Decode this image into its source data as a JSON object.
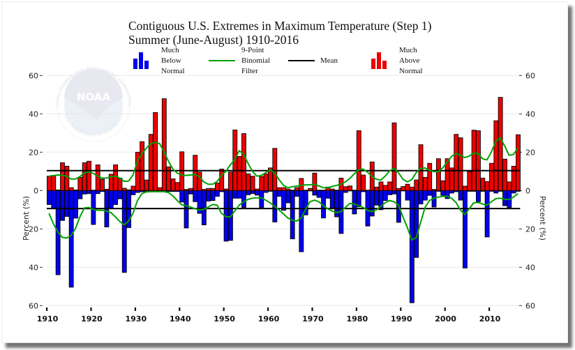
{
  "chart_data": {
    "type": "bar",
    "title": "Contiguous U.S. Extremes in Maximum Temperature (Step 1)",
    "subtitle": "Summer (June-August) 1910-2016",
    "xlabel": "",
    "ylabel_left": "Percent (%)",
    "ylabel_right": "Percent (%)",
    "ylim": [
      -60,
      60
    ],
    "yticks": [
      "60",
      "40",
      "20",
      "0",
      "20",
      "40",
      "60"
    ],
    "ytick_values": [
      60,
      40,
      20,
      0,
      -20,
      -40,
      -60
    ],
    "xticks": [
      "1910",
      "1920",
      "1930",
      "1940",
      "1950",
      "1960",
      "1970",
      "1980",
      "1990",
      "2000",
      "2010"
    ],
    "xtick_values": [
      1910,
      1920,
      1930,
      1940,
      1950,
      1960,
      1970,
      1980,
      1990,
      2000,
      2010
    ],
    "grid": true,
    "legend_position": "top",
    "legend": [
      {
        "key": "below",
        "label_lines": [
          "Much",
          "Below",
          "Normal"
        ],
        "type": "bars",
        "color": "#0000ee"
      },
      {
        "key": "filter",
        "label_lines": [
          "9-Point",
          "Binomial",
          "Filter"
        ],
        "type": "line",
        "color": "#00a000"
      },
      {
        "key": "mean",
        "label_lines": [
          "Mean"
        ],
        "type": "line",
        "color": "#000000"
      },
      {
        "key": "above",
        "label_lines": [
          "Much",
          "Above",
          "Normal"
        ],
        "type": "bars",
        "color": "#ee0000"
      }
    ],
    "x_start": 1910,
    "x_end": 2016,
    "series": [
      {
        "name": "Much Above Normal",
        "color": "#ee0000",
        "direction": "up",
        "values": [
          7.5,
          7.9,
          0.3,
          14.5,
          12.7,
          1.5,
          0.3,
          6.9,
          14.5,
          15.3,
          0.2,
          13.4,
          5.9,
          0.7,
          8.5,
          13.4,
          6.5,
          1.2,
          0.4,
          2.3,
          20.0,
          25.5,
          5.5,
          29.3,
          40.7,
          1.5,
          47.9,
          12.4,
          6.1,
          4.2,
          20.2,
          0.6,
          1.1,
          18.4,
          9.6,
          0.6,
          1.1,
          1.1,
          3.9,
          11.2,
          0.8,
          9.6,
          31.6,
          17.8,
          29.7,
          8.7,
          7.5,
          0.8,
          7.3,
          8.7,
          11.8,
          22.0,
          1.5,
          1.5,
          0.8,
          0.2,
          1.5,
          6.3,
          0.2,
          1.1,
          9.1,
          0.2,
          0.2,
          1.8,
          0.8,
          0.2,
          6.5,
          2.0,
          2.4,
          0.2,
          31.2,
          8.1,
          0.2,
          14.9,
          1.8,
          4.5,
          2.7,
          4.5,
          35.3,
          1.1,
          2.1,
          3.3,
          1.8,
          5.5,
          23.9,
          6.9,
          14.2,
          0.6,
          16.6,
          5.1,
          16.6,
          11.8,
          29.3,
          27.5,
          2.3,
          9.9,
          31.5,
          31.2,
          6.5,
          4.7,
          14.2,
          36.4,
          48.6,
          16.4,
          4.5,
          12.7,
          29.1
        ]
      },
      {
        "name": "Much Below Normal",
        "color": "#0000ee",
        "direction": "down",
        "values": [
          7.3,
          9.1,
          43.9,
          15.6,
          13.5,
          50.4,
          14.4,
          4.3,
          1.8,
          1.6,
          17.7,
          1.6,
          0.5,
          19.0,
          9.1,
          7.3,
          4.3,
          42.7,
          19.3,
          2.2,
          1.0,
          0.6,
          0.5,
          0.5,
          0.5,
          0.5,
          0.5,
          0.5,
          0.5,
          0.5,
          6.0,
          19.5,
          1.8,
          5.8,
          11.9,
          17.9,
          5.5,
          5.2,
          3.0,
          0.6,
          26.4,
          26.0,
          4.0,
          4.0,
          8.8,
          2.2,
          1.6,
          2.4,
          8.8,
          1.0,
          0.4,
          16.4,
          3.0,
          10.3,
          6.4,
          25.2,
          3.0,
          31.9,
          12.7,
          0.1,
          2.4,
          3.6,
          14.3,
          4.0,
          9.1,
          13.7,
          22.4,
          1.0,
          0.2,
          12.2,
          8.5,
          0.6,
          18.5,
          13.3,
          7.6,
          10.0,
          5.2,
          2.2,
          1.8,
          16.6,
          0.2,
          5.0,
          58.5,
          34.9,
          7.0,
          5.0,
          2.5,
          8.6,
          0.4,
          2.5,
          4.2,
          1.3,
          0.6,
          5.0,
          40.4,
          0.4,
          0.4,
          5.8,
          0.4,
          24.2,
          0.4,
          1.3,
          0.4,
          7.9,
          8.8,
          1.3,
          0.4
        ]
      }
    ],
    "filter_above": [
      7.5,
      7.8,
      8.1,
      8.0,
      7.5,
      6.0,
      6.0,
      7.3,
      9.3,
      9.7,
      9.0,
      7.5,
      6.5,
      6.5,
      7.2,
      7.5,
      6.5,
      4.8,
      5.0,
      8.1,
      15.4,
      19.3,
      22.0,
      24.5,
      25.1,
      24.5,
      20.2,
      15.4,
      11.2,
      9.1,
      8.1,
      7.9,
      8.1,
      8.4,
      7.2,
      4.5,
      3.3,
      3.3,
      4.7,
      7.9,
      10.0,
      13.5,
      16.0,
      20.8,
      19.0,
      14.2,
      10.0,
      7.5,
      7.9,
      9.3,
      10.8,
      9.3,
      5.7,
      2.7,
      1.5,
      2.0,
      2.3,
      2.7,
      3.0,
      3.0,
      3.3,
      2.4,
      1.5,
      1.5,
      2.1,
      2.7,
      3.3,
      4.5,
      6.3,
      8.7,
      10.8,
      11.2,
      9.6,
      7.5,
      5.9,
      5.5,
      7.5,
      10.3,
      11.5,
      9.3,
      5.9,
      4.5,
      5.7,
      9.3,
      11.5,
      11.8,
      10.5,
      9.9,
      9.9,
      11.8,
      14.8,
      17.8,
      19.3,
      18.4,
      17.2,
      18.0,
      19.6,
      19.3,
      16.6,
      16.0,
      20.2,
      25.7,
      27.5,
      23.3,
      18.4,
      18.8,
      22.3
    ],
    "filter_below": [
      11.9,
      17.3,
      21.6,
      24.4,
      24.8,
      23.4,
      19.8,
      13.7,
      9.1,
      8.8,
      9.8,
      10.3,
      10.3,
      10.7,
      11.5,
      13.7,
      16.1,
      17.9,
      15.9,
      11.9,
      5.2,
      1.6,
      0.7,
      0.6,
      0.6,
      0.6,
      0.6,
      1.0,
      2.8,
      5.2,
      7.4,
      7.9,
      8.6,
      9.5,
      10.1,
      9.8,
      8.6,
      7.3,
      7.6,
      11.9,
      13.7,
      13.7,
      10.7,
      7.6,
      5.8,
      4.6,
      4.0,
      3.8,
      3.8,
      5.0,
      6.4,
      8.2,
      10.1,
      12.2,
      14.3,
      15.5,
      15.9,
      14.3,
      9.8,
      5.8,
      5.0,
      5.8,
      7.9,
      9.5,
      10.7,
      11.5,
      11.0,
      8.8,
      6.7,
      7.0,
      7.9,
      8.8,
      10.3,
      11.0,
      10.1,
      8.2,
      6.4,
      5.2,
      5.8,
      7.6,
      13.7,
      19.2,
      25.8,
      24.6,
      16.7,
      8.8,
      5.2,
      4.0,
      3.4,
      3.0,
      3.0,
      4.0,
      6.2,
      10.1,
      12.5,
      9.5,
      6.4,
      6.2,
      7.0,
      7.6,
      5.8,
      4.2,
      4.0,
      4.6,
      4.7,
      3.4,
      1.6
    ],
    "mean_above": 10.4,
    "mean_below": 9.4
  },
  "watermark": {
    "name": "NOAA",
    "ring_text_top": "NATIONAL OCEANIC AND ATMOSPHERIC ADMINISTRATION",
    "ring_text_bottom": "U.S. DEPARTMENT OF COMMERCE"
  }
}
